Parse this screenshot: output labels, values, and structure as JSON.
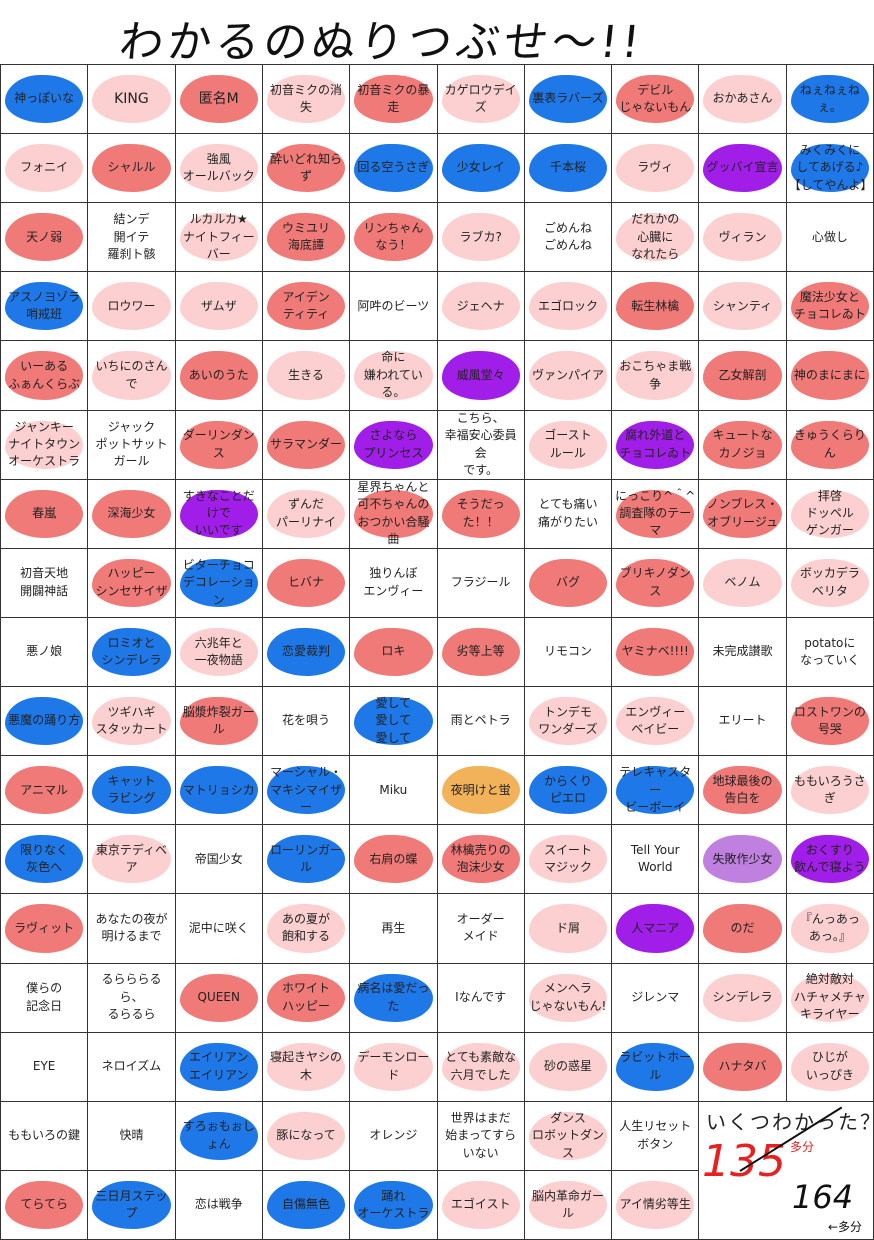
{
  "title": "わかるのぬりつぶせ～!!",
  "colors": {
    "red": "#f07a78",
    "pink": "#fcd0d0",
    "blue": "#1e78e8",
    "purple": "#a01ee8"
  },
  "cells": [
    [
      {
        "t": "神っぽいな",
        "c": "blue"
      },
      {
        "t": "KING",
        "c": "pink"
      },
      {
        "t": "匿名M",
        "c": "red"
      },
      {
        "t": "初音ミクの消失",
        "c": "pink"
      },
      {
        "t": "初音ミクの暴走",
        "c": "red"
      },
      {
        "t": "カゲロウデイズ",
        "c": "pink"
      },
      {
        "t": "裏表ラバーズ",
        "c": "blue"
      },
      {
        "t": "デビル\nじゃないもん",
        "c": "red"
      },
      {
        "t": "おかあさん",
        "c": "pink"
      },
      {
        "t": "ねぇねぇねぇ。",
        "c": "blue"
      }
    ],
    [
      {
        "t": "フォニイ",
        "c": "pink"
      },
      {
        "t": "シャルル",
        "c": "red"
      },
      {
        "t": "強風\nオールバック",
        "c": "pink"
      },
      {
        "t": "酔いどれ知らず",
        "c": "red"
      },
      {
        "t": "回る空うさぎ",
        "c": "blue"
      },
      {
        "t": "少女レイ",
        "c": "blue"
      },
      {
        "t": "千本桜",
        "c": "blue"
      },
      {
        "t": "ラヴィ",
        "c": "pink"
      },
      {
        "t": "グッバイ宣言",
        "c": "purple"
      },
      {
        "t": "みくみくに\nしてあげる♪\n【してやんよ】",
        "c": "blue"
      }
    ],
    [
      {
        "t": "天ノ弱",
        "c": "red"
      },
      {
        "t": "結ンデ\n開イテ\n羅刹ト骸",
        "c": ""
      },
      {
        "t": "ルカルカ★\nナイトフィーバー",
        "c": "pink"
      },
      {
        "t": "ウミユリ\n海底譚",
        "c": "red"
      },
      {
        "t": "リンちゃん\nなう！",
        "c": "red"
      },
      {
        "t": "ラブカ?",
        "c": "pink"
      },
      {
        "t": "ごめんね\nごめんね",
        "c": ""
      },
      {
        "t": "だれかの\n心臓に\nなれたら",
        "c": "pink"
      },
      {
        "t": "ヴィラン",
        "c": "pink"
      },
      {
        "t": "心做し",
        "c": ""
      }
    ],
    [
      {
        "t": "アスノヨゾラ\n哨戒班",
        "c": "blue"
      },
      {
        "t": "ロウワー",
        "c": "pink"
      },
      {
        "t": "ザムザ",
        "c": "pink"
      },
      {
        "t": "アイデン\nティティ",
        "c": "red"
      },
      {
        "t": "阿吽のビーツ",
        "c": ""
      },
      {
        "t": "ジェヘナ",
        "c": "pink"
      },
      {
        "t": "エゴロック",
        "c": "pink"
      },
      {
        "t": "転生林檎",
        "c": "red"
      },
      {
        "t": "シャンティ",
        "c": "pink"
      },
      {
        "t": "魔法少女と\nチョコレゐト",
        "c": "red"
      }
    ],
    [
      {
        "t": "いーある\nふぁんくらぶ",
        "c": "red"
      },
      {
        "t": "いちにのさんで",
        "c": "pink"
      },
      {
        "t": "あいのうた",
        "c": "red"
      },
      {
        "t": "生きる",
        "c": "pink"
      },
      {
        "t": "命に\n嫌われている。",
        "c": "pink"
      },
      {
        "t": "威風堂々",
        "c": "purple"
      },
      {
        "t": "ヴァンパイア",
        "c": "pink"
      },
      {
        "t": "おこちゃま戦争",
        "c": "pink"
      },
      {
        "t": "乙女解剖",
        "c": "red"
      },
      {
        "t": "神のまにまに",
        "c": "red"
      }
    ],
    [
      {
        "t": "ジャンキー\nナイトタウン\nオーケストラ",
        "c": "pink"
      },
      {
        "t": "ジャック\nポットサット\nガール",
        "c": ""
      },
      {
        "t": "ダーリンダンス",
        "c": "red"
      },
      {
        "t": "サラマンダー",
        "c": "red"
      },
      {
        "t": "さよなら\nプリンセス",
        "c": "purple"
      },
      {
        "t": "こちら、\n幸福安心委員会\nです。",
        "c": ""
      },
      {
        "t": "ゴースト\nルール",
        "c": "pink"
      },
      {
        "t": "腐れ外道と\nチョコレゐト",
        "c": "purple"
      },
      {
        "t": "キュートな\nカノジョ",
        "c": "red"
      },
      {
        "t": "きゅうくらりん",
        "c": "red"
      }
    ],
    [
      {
        "t": "春嵐",
        "c": "red"
      },
      {
        "t": "深海少女",
        "c": "red"
      },
      {
        "t": "すきなことだけで\nいいです",
        "c": "purple"
      },
      {
        "t": "ずんだ\nパーリナイ",
        "c": "pink"
      },
      {
        "t": "星界ちゃんと\n可不ちゃんの\nおつかい合騒曲",
        "c": "red"
      },
      {
        "t": "そうだった！！",
        "c": "red"
      },
      {
        "t": "とても痛い\n痛がりたい",
        "c": ""
      },
      {
        "t": "にっこり^＾^\n調査隊のテーマ",
        "c": "red"
      },
      {
        "t": "ノンブレス・\nオブリージュ",
        "c": "red"
      },
      {
        "t": "拝啓\nドッペル\nゲンガー",
        "c": "pink"
      }
    ],
    [
      {
        "t": "初音天地\n開闢神話",
        "c": ""
      },
      {
        "t": "ハッピー\nシンセサイザ",
        "c": "red"
      },
      {
        "t": "ビターチョコ\nデコレーション",
        "c": "blue"
      },
      {
        "t": "ヒバナ",
        "c": "red"
      },
      {
        "t": "独りんぼ\nエンヴィー",
        "c": ""
      },
      {
        "t": "フラジール",
        "c": ""
      },
      {
        "t": "バグ",
        "c": "red"
      },
      {
        "t": "ブリキノダンス",
        "c": "red"
      },
      {
        "t": "ベノム",
        "c": "pink"
      },
      {
        "t": "ボッカデラ\nベリタ",
        "c": "pink"
      }
    ],
    [
      {
        "t": "悪ノ娘",
        "c": ""
      },
      {
        "t": "ロミオと\nシンデレラ",
        "c": "blue"
      },
      {
        "t": "六兆年と\n一夜物語",
        "c": "pink"
      },
      {
        "t": "恋愛裁判",
        "c": "blue"
      },
      {
        "t": "ロキ",
        "c": "red"
      },
      {
        "t": "劣等上等",
        "c": "red"
      },
      {
        "t": "リモコン",
        "c": ""
      },
      {
        "t": "ヤミナベ!!!!",
        "c": "red"
      },
      {
        "t": "未完成讃歌",
        "c": ""
      },
      {
        "t": "potatoに\nなっていく",
        "c": ""
      }
    ],
    [
      {
        "t": "悪魔の踊り方",
        "c": "blue"
      },
      {
        "t": "ツギハギ\nスタッカート",
        "c": "pink"
      },
      {
        "t": "脳漿炸裂ガール",
        "c": "red"
      },
      {
        "t": "花を唄う",
        "c": ""
      },
      {
        "t": "愛して\n愛して\n愛して",
        "c": "blue"
      },
      {
        "t": "雨とペトラ",
        "c": ""
      },
      {
        "t": "トンデモ\nワンダーズ",
        "c": "pink"
      },
      {
        "t": "エンヴィー\nベイビー",
        "c": "pink"
      },
      {
        "t": "エリート",
        "c": ""
      },
      {
        "t": "ロストワンの\n号哭",
        "c": "red"
      }
    ],
    [
      {
        "t": "アニマル",
        "c": "red"
      },
      {
        "t": "キャット\nラビング",
        "c": "blue"
      },
      {
        "t": "マトリョシカ",
        "c": "blue"
      },
      {
        "t": "マーシャル・\nマキシマイザー",
        "c": "blue"
      },
      {
        "t": "Miku",
        "c": ""
      },
      {
        "t": "夜明けと蛍",
        "c": "scribble"
      },
      {
        "t": "からくり\nピエロ",
        "c": "blue"
      },
      {
        "t": "テレキャスター\nビーボーイ",
        "c": "blue"
      },
      {
        "t": "地球最後の\n告白を",
        "c": "red"
      },
      {
        "t": "ももいろうさぎ",
        "c": "pink"
      }
    ],
    [
      {
        "t": "限りなく\n灰色へ",
        "c": "blue"
      },
      {
        "t": "東京テディベア",
        "c": "pink"
      },
      {
        "t": "帝国少女",
        "c": ""
      },
      {
        "t": "ローリンガール",
        "c": "blue"
      },
      {
        "t": "右肩の蝶",
        "c": "red"
      },
      {
        "t": "林檎売りの\n泡沫少女",
        "c": "red"
      },
      {
        "t": "スイート\nマジック",
        "c": "pink"
      },
      {
        "t": "Tell Your World",
        "c": ""
      },
      {
        "t": "失敗作少女",
        "c": "scribble2"
      },
      {
        "t": "おくすり\n飲んで寝よう",
        "c": "purple"
      }
    ],
    [
      {
        "t": "ラヴィット",
        "c": "red"
      },
      {
        "t": "あなたの夜が\n明けるまで",
        "c": ""
      },
      {
        "t": "泥中に咲く",
        "c": ""
      },
      {
        "t": "あの夏が\n飽和する",
        "c": "pink"
      },
      {
        "t": "再生",
        "c": ""
      },
      {
        "t": "オーダー\nメイド",
        "c": ""
      },
      {
        "t": "ド屑",
        "c": "pink"
      },
      {
        "t": "人マニア",
        "c": "purple"
      },
      {
        "t": "のだ",
        "c": "red"
      },
      {
        "t": "『んっあっ\nあっ。』",
        "c": "pink"
      }
    ],
    [
      {
        "t": "僕らの\n記念日",
        "c": ""
      },
      {
        "t": "るらららるら、\nるらるら",
        "c": ""
      },
      {
        "t": "QUEEN",
        "c": "red"
      },
      {
        "t": "ホワイト\nハッピー",
        "c": "red"
      },
      {
        "t": "病名は愛だった",
        "c": "blue"
      },
      {
        "t": "Iなんです",
        "c": ""
      },
      {
        "t": "メンヘラ\nじゃないもん!",
        "c": "pink"
      },
      {
        "t": "ジレンマ",
        "c": ""
      },
      {
        "t": "シンデレラ",
        "c": "pink"
      },
      {
        "t": "絶対敵対\nハチャメチャ\nキライヤー",
        "c": "pink"
      }
    ],
    [
      {
        "t": "EYE",
        "c": ""
      },
      {
        "t": "ネロイズム",
        "c": ""
      },
      {
        "t": "エイリアン\nエイリアン",
        "c": "blue"
      },
      {
        "t": "寝起きヤシの木",
        "c": "pink"
      },
      {
        "t": "デーモンロード",
        "c": "pink"
      },
      {
        "t": "とても素敵な\n六月でした",
        "c": "pink"
      },
      {
        "t": "砂の惑星",
        "c": "pink"
      },
      {
        "t": "ラビットホール",
        "c": "blue"
      },
      {
        "t": "ハナタバ",
        "c": "red"
      },
      {
        "t": "ひじが\nいっぴき",
        "c": "pink"
      }
    ],
    [
      {
        "t": "ももいろの鍵",
        "c": ""
      },
      {
        "t": "快晴",
        "c": ""
      },
      {
        "t": "すろぉもぉしょん",
        "c": "blue"
      },
      {
        "t": "豚になって",
        "c": "pink"
      },
      {
        "t": "オレンジ",
        "c": ""
      },
      {
        "t": "世界はまだ\n始まってすらいない",
        "c": ""
      },
      {
        "t": "ダンス\nロボットダンス",
        "c": "pink"
      },
      {
        "t": "人生リセット\nボタン",
        "c": ""
      },
      {
        "t": "",
        "c": "none"
      },
      {
        "t": "",
        "c": "none"
      }
    ],
    [
      {
        "t": "てらてら",
        "c": "red"
      },
      {
        "t": "三日月ステップ",
        "c": "blue"
      },
      {
        "t": "恋は戦争",
        "c": ""
      },
      {
        "t": "自傷無色",
        "c": "blue"
      },
      {
        "t": "踊れ\nオーケストラ",
        "c": "blue"
      },
      {
        "t": "エゴイスト",
        "c": "pink"
      },
      {
        "t": "脳内革命ガール",
        "c": "pink"
      },
      {
        "t": "アイ情劣等生",
        "c": "pink"
      },
      {
        "t": "",
        "c": "none"
      },
      {
        "t": "",
        "c": "none"
      }
    ]
  ],
  "answer": {
    "question": "いくつわかった？",
    "score": "135",
    "score_note": "多分",
    "total": "164",
    "total_note": "←多分"
  }
}
